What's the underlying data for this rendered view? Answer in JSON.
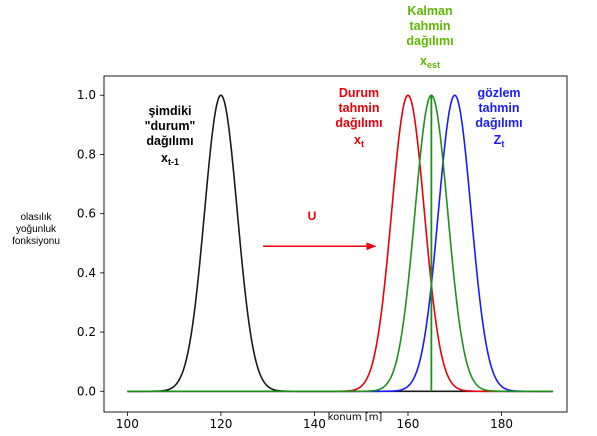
{
  "chart_data": {
    "type": "line",
    "xlabel": "konum [m]",
    "ylabel": "olasılık yoğunluk fonksiyonu",
    "xlim": [
      95,
      194
    ],
    "ylim": [
      -0.07,
      1.065
    ],
    "xticks": [
      100,
      120,
      140,
      160,
      180
    ],
    "yticks": [
      0.0,
      0.2,
      0.4,
      0.6,
      0.8,
      1.0
    ],
    "x_range": [
      100,
      191
    ],
    "series": [
      {
        "name": "şimdiki \"durum\" dağılımı",
        "symbol": "x",
        "subscript": "t-1",
        "mean": 120,
        "sigma": 3.5,
        "peak": 1.0,
        "color": "#1a1a1a"
      },
      {
        "name": "Durum tahmin dağılımı",
        "symbol": "x",
        "subscript": "t",
        "mean": 160,
        "sigma": 3.5,
        "peak": 1.0,
        "color": "#e8000b"
      },
      {
        "name": "gözlem tahmin dağılımı",
        "symbol": "Z",
        "subscript": "t",
        "mean": 170,
        "sigma": 3.5,
        "peak": 1.0,
        "color": "#1a1aff"
      },
      {
        "name": "Kalman tahmin dağılımı",
        "symbol": "x",
        "subscript": "est",
        "mean": 165,
        "sigma": 3.5,
        "peak": 1.0,
        "color": "#1f8f1f"
      }
    ],
    "vertical_line": {
      "x": 165,
      "y_from": 0.0,
      "y_to": 1.0,
      "color": "#1f8f1f"
    },
    "arrow": {
      "label": "U",
      "x_from": 129,
      "x_to": 153,
      "y": 0.49,
      "color": "#e8000b"
    }
  },
  "annotations": {
    "current": {
      "line1": "şimdiki",
      "line2": "\"durum\"",
      "line3": "dağılımı",
      "symbol": "x",
      "sub": "t-1"
    },
    "predict": {
      "line1": "Durum",
      "line2": "tahmin",
      "line3": "dağılımı",
      "symbol": "x",
      "sub": "t"
    },
    "kalman": {
      "line1": "Kalman",
      "line2": "tahmin",
      "line3": "dağılımı",
      "symbol": "x",
      "sub": "est"
    },
    "observe": {
      "line1": "gözlem",
      "line2": "tahmin",
      "line3": "dağılımı",
      "symbol": "Z",
      "sub": "t"
    },
    "u_label": "U"
  }
}
